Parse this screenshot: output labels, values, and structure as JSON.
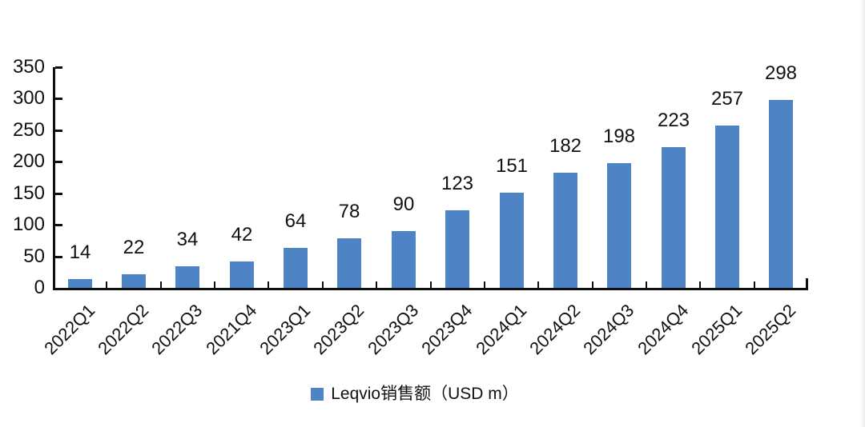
{
  "chart_data": {
    "type": "bar",
    "title": "",
    "xlabel": "",
    "ylabel": "",
    "categories": [
      "2022Q1",
      "2022Q2",
      "2022Q3",
      "2021Q4",
      "2023Q1",
      "2023Q2",
      "2023Q3",
      "2023Q4",
      "2024Q1",
      "2024Q2",
      "2024Q3",
      "2024Q4",
      "2025Q1",
      "2025Q2"
    ],
    "series": [
      {
        "name": "Leqvio销售额（USD m）",
        "values": [
          14,
          22,
          34,
          42,
          64,
          78,
          90,
          123,
          151,
          182,
          198,
          223,
          257,
          298
        ]
      }
    ],
    "data_labels_shown": true,
    "ylim": [
      0,
      350
    ],
    "ytick_step": 50,
    "yticks": [
      0,
      50,
      100,
      150,
      200,
      250,
      300,
      350
    ],
    "grid": false,
    "x_label_rotation_deg": 45,
    "legend_position": "bottom-center",
    "colors": {
      "bar": "#4E83C6",
      "axis": "#0F0F0F",
      "text": "#111111",
      "background": "#FFFFFF"
    }
  }
}
